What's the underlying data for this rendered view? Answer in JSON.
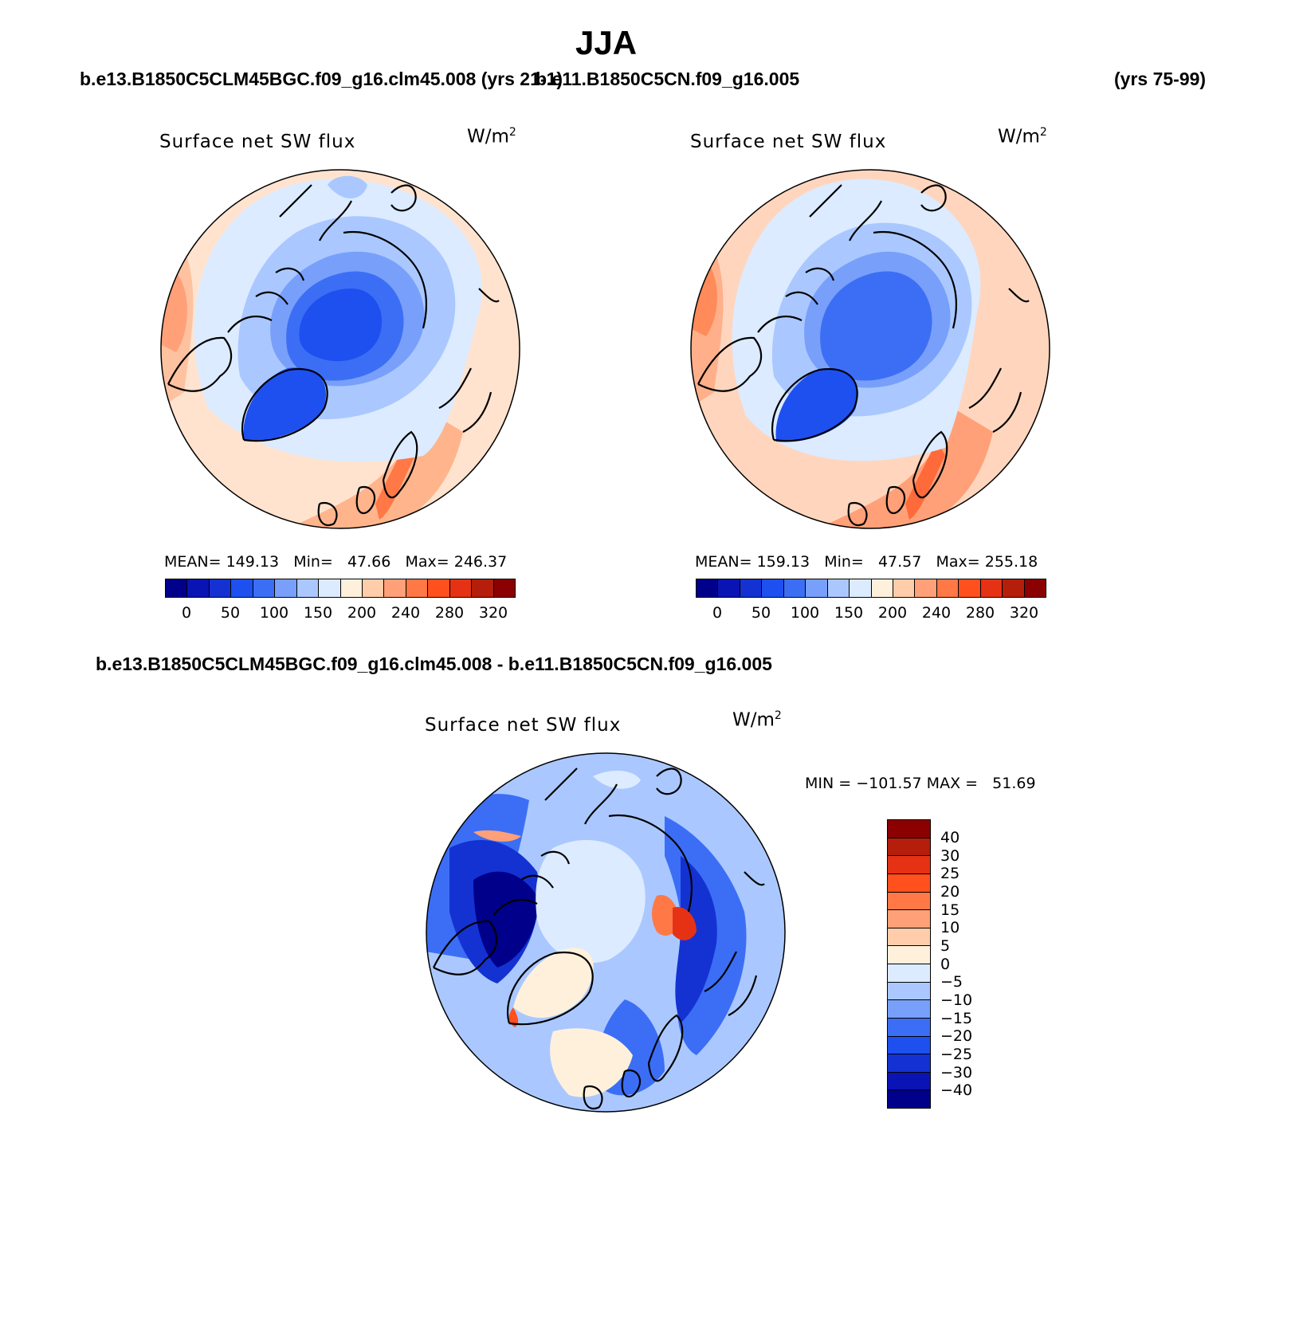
{
  "figure_title": "JJA",
  "top_left_case": "b.e13.B1850C5CLM45BGC.f09_g16.clm45.008 (yrs 21-1)",
  "top_right_case": "b.e11.B1850C5CN.f09_g16.005",
  "top_right_years": "(yrs 75-99)",
  "diff_case": "b.e13.B1850C5CLM45BGC.f09_g16.clm45.008 - b.e11.B1850C5CN.f09_g16.005",
  "plot_title": "Surface net SW flux",
  "units_base": "W/m",
  "units_exp": "2",
  "panels": [
    {
      "mean_label": "MEAN=",
      "mean": "149.13",
      "min_label": "Min=",
      "min": "47.66",
      "max_label": "Max=",
      "max": "246.37"
    },
    {
      "mean_label": "MEAN=",
      "mean": "159.13",
      "min_label": "Min=",
      "min": "47.57",
      "max_label": "Max=",
      "max": "255.18"
    }
  ],
  "diff_stats": {
    "min_label": "MIN =",
    "min": "−101.57",
    "max_label": "MAX =",
    "max": "51.69"
  },
  "colors": {
    "abs_scale": [
      "#00008b",
      "#0a14b4",
      "#1432d2",
      "#1e50f0",
      "#3c6ef5",
      "#78a0fa",
      "#aac8ff",
      "#dcebff",
      "#fff0dc",
      "#ffcdaa",
      "#ffa078",
      "#ff7846",
      "#ff501e",
      "#e63214",
      "#b41e0a",
      "#8b0000"
    ],
    "diff_scale": [
      "#00008b",
      "#0a14b4",
      "#1432d2",
      "#1e50f0",
      "#3c6ef5",
      "#78a0fa",
      "#aac8ff",
      "#dcebff",
      "#fff0dc",
      "#ffcdaa",
      "#ffa078",
      "#ff7846",
      "#ff501e",
      "#e63214",
      "#b41e0a",
      "#8b0000"
    ],
    "coast": "#000000"
  },
  "chart_data": [
    {
      "type": "map",
      "projection": "north polar stereographic",
      "title": "Surface net SW flux",
      "units": "W/m2",
      "colorbar_ticks": [
        "0",
        "50",
        "100",
        "150",
        "200",
        "240",
        "280",
        "320"
      ],
      "stats": {
        "mean": 149.13,
        "min": 47.66,
        "max": 246.37
      }
    },
    {
      "type": "map",
      "projection": "north polar stereographic",
      "title": "Surface net SW flux",
      "units": "W/m2",
      "colorbar_ticks": [
        "0",
        "50",
        "100",
        "150",
        "200",
        "240",
        "280",
        "320"
      ],
      "stats": {
        "mean": 159.13,
        "min": 47.57,
        "max": 255.18
      }
    },
    {
      "type": "map",
      "projection": "north polar stereographic",
      "title": "Surface net SW flux",
      "units": "W/m2",
      "colorbar_ticks": [
        "40",
        "30",
        "25",
        "20",
        "15",
        "10",
        "5",
        "0",
        "−5",
        "−10",
        "−15",
        "−20",
        "−25",
        "−30",
        "−40"
      ],
      "stats": {
        "min": -101.57,
        "max": 51.69
      }
    }
  ]
}
